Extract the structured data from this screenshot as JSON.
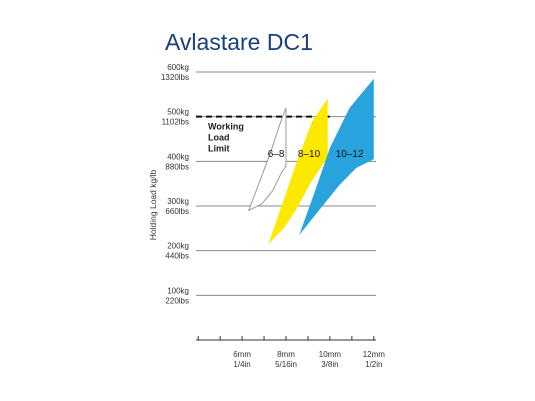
{
  "chart_data": {
    "type": "area",
    "title": "Avlastare DC1",
    "xlabel": "",
    "ylabel": "Holding Load kg/lb",
    "x_ticks": [
      {
        "value": 6,
        "label_mm": "6mm",
        "label_in": "1/4in"
      },
      {
        "value": 8,
        "label_mm": "8mm",
        "label_in": "5/16in"
      },
      {
        "value": 10,
        "label_mm": "10mm",
        "label_in": "3/8in"
      },
      {
        "value": 12,
        "label_mm": "12mm",
        "label_in": "1/2in"
      }
    ],
    "y_ticks": [
      {
        "value": 100,
        "label_kg": "100kg",
        "label_lbs": "220lbs"
      },
      {
        "value": 200,
        "label_kg": "200kg",
        "label_lbs": "440lbs"
      },
      {
        "value": 300,
        "label_kg": "300kg",
        "label_lbs": "660lbs"
      },
      {
        "value": 400,
        "label_kg": "400kg",
        "label_lbs": "880lbs"
      },
      {
        "value": 500,
        "label_kg": "500kg",
        "label_lbs": "1102lbs"
      },
      {
        "value": 600,
        "label_kg": "600kg",
        "label_lbs": "1320lbs"
      }
    ],
    "xlim": [
      3.9,
      12.1
    ],
    "ylim": [
      0,
      600
    ],
    "grid": true,
    "working_load_limit": {
      "value": 500,
      "label_lines": [
        "Working",
        "Load",
        "Limit"
      ]
    },
    "series": [
      {
        "name": "6–8",
        "color": "#ffffff",
        "stroke": "#9a9a9a",
        "upper": [
          [
            6.3,
            290
          ],
          [
            6.8,
            355
          ],
          [
            7.3,
            420
          ],
          [
            7.7,
            480
          ],
          [
            8.0,
            520
          ]
        ],
        "lower": [
          [
            6.3,
            290
          ],
          [
            6.9,
            305
          ],
          [
            7.4,
            335
          ],
          [
            7.8,
            375
          ],
          [
            8.0,
            390
          ]
        ]
      },
      {
        "name": "8–10",
        "color": "#fde800",
        "stroke": "none",
        "upper": [
          [
            7.2,
            215
          ],
          [
            7.8,
            300
          ],
          [
            8.5,
            400
          ],
          [
            9.2,
            490
          ],
          [
            9.9,
            540
          ]
        ],
        "lower": [
          [
            7.2,
            215
          ],
          [
            7.9,
            250
          ],
          [
            8.5,
            295
          ],
          [
            9.1,
            350
          ],
          [
            9.9,
            410
          ]
        ]
      },
      {
        "name": "10–12",
        "color": "#29a3dc",
        "stroke": "none",
        "upper": [
          [
            8.6,
            235
          ],
          [
            9.3,
            330
          ],
          [
            10.0,
            430
          ],
          [
            10.9,
            520
          ],
          [
            12.0,
            585
          ]
        ],
        "lower": [
          [
            8.6,
            235
          ],
          [
            9.5,
            290
          ],
          [
            10.4,
            345
          ],
          [
            11.2,
            385
          ],
          [
            12.0,
            405
          ]
        ]
      }
    ]
  }
}
